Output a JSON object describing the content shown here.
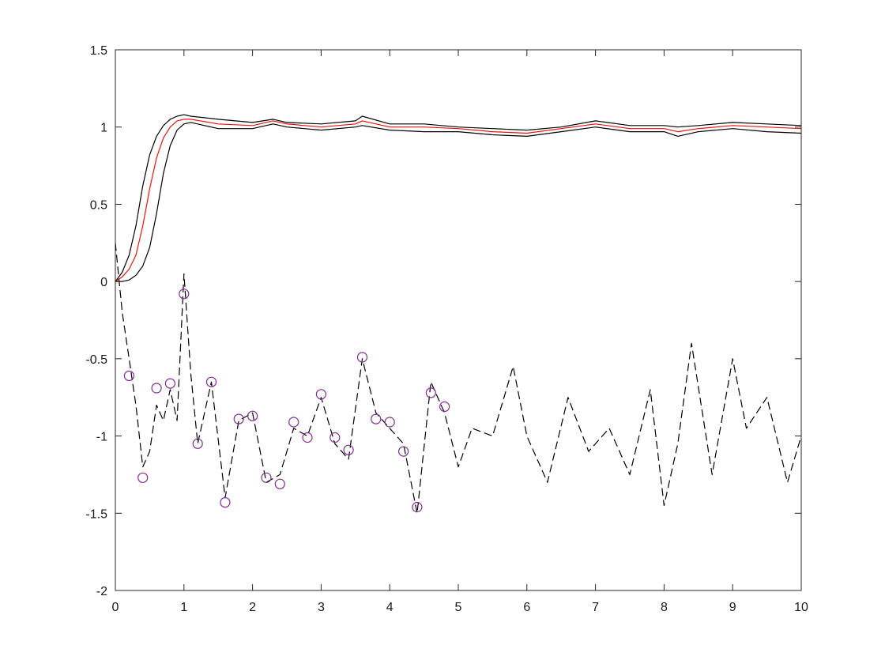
{
  "chart_data": {
    "type": "line",
    "title": "",
    "xlabel": "",
    "ylabel": "",
    "xlim": [
      0,
      10
    ],
    "ylim": [
      -2,
      1.5
    ],
    "grid": false,
    "legend": "none",
    "x_ticks": [
      "0",
      "1",
      "2",
      "3",
      "4",
      "5",
      "6",
      "7",
      "8",
      "9",
      "10"
    ],
    "y_ticks": [
      "-2",
      "-1.5",
      "-1",
      "-0.5",
      "0",
      "0.5",
      "1",
      "1.5"
    ],
    "colors": {
      "upper_band": "#000000",
      "mean": "#e8130f",
      "lower_band": "#000000",
      "noisy_signal": "#000000",
      "markers": "#7e2f8e"
    },
    "series": [
      {
        "style": "solid-black",
        "x": [
          0,
          0.1,
          0.2,
          0.3,
          0.4,
          0.5,
          0.6,
          0.7,
          0.8,
          0.9,
          1.0,
          1.1,
          1.5,
          2.0,
          2.3,
          2.5,
          3.0,
          3.5,
          3.6,
          4.0,
          4.5,
          5.0,
          5.5,
          6.0,
          6.5,
          7.0,
          7.5,
          8.0,
          8.2,
          8.5,
          9.0,
          9.5,
          10.0
        ],
        "y": [
          0.0,
          0.06,
          0.17,
          0.36,
          0.62,
          0.82,
          0.94,
          1.01,
          1.05,
          1.07,
          1.08,
          1.07,
          1.05,
          1.03,
          1.05,
          1.03,
          1.02,
          1.04,
          1.07,
          1.02,
          1.02,
          1.0,
          0.99,
          0.98,
          1.0,
          1.04,
          1.01,
          1.01,
          1.0,
          1.01,
          1.03,
          1.02,
          1.01
        ]
      },
      {
        "style": "solid-red",
        "x": [
          0,
          0.1,
          0.2,
          0.3,
          0.4,
          0.5,
          0.6,
          0.7,
          0.8,
          0.9,
          1.0,
          1.1,
          1.5,
          2.0,
          2.3,
          2.5,
          3.0,
          3.5,
          3.6,
          4.0,
          4.5,
          5.0,
          5.5,
          6.0,
          6.5,
          7.0,
          7.5,
          8.0,
          8.2,
          8.5,
          9.0,
          9.5,
          10.0
        ],
        "y": [
          0.0,
          0.03,
          0.08,
          0.17,
          0.36,
          0.6,
          0.8,
          0.93,
          1.0,
          1.04,
          1.05,
          1.05,
          1.02,
          1.01,
          1.04,
          1.02,
          1.0,
          1.02,
          1.04,
          1.0,
          1.0,
          0.99,
          0.97,
          0.96,
          0.99,
          1.02,
          0.99,
          0.99,
          0.97,
          0.99,
          1.01,
          1.0,
          0.99
        ]
      },
      {
        "style": "solid-black",
        "x": [
          0,
          0.1,
          0.2,
          0.3,
          0.4,
          0.5,
          0.6,
          0.7,
          0.8,
          0.9,
          1.0,
          1.1,
          1.5,
          2.0,
          2.3,
          2.5,
          3.0,
          3.5,
          3.6,
          4.0,
          4.5,
          5.0,
          5.5,
          6.0,
          6.5,
          7.0,
          7.5,
          8.0,
          8.2,
          8.5,
          9.0,
          9.5,
          10.0
        ],
        "y": [
          0.0,
          0.0,
          0.01,
          0.04,
          0.1,
          0.22,
          0.44,
          0.7,
          0.88,
          0.98,
          1.02,
          1.03,
          0.99,
          0.99,
          1.02,
          1.0,
          0.98,
          1.0,
          1.01,
          0.98,
          0.97,
          0.97,
          0.95,
          0.94,
          0.97,
          1.0,
          0.97,
          0.97,
          0.94,
          0.97,
          0.99,
          0.97,
          0.96
        ]
      },
      {
        "style": "dashed-black",
        "x": [
          0,
          0.1,
          0.2,
          0.3,
          0.4,
          0.5,
          0.6,
          0.7,
          0.8,
          0.9,
          1.0,
          1.1,
          1.2,
          1.4,
          1.6,
          1.8,
          2.0,
          2.2,
          2.4,
          2.6,
          2.8,
          3.0,
          3.2,
          3.4,
          3.6,
          3.8,
          4.0,
          4.2,
          4.4,
          4.6,
          4.8,
          5.0,
          5.2,
          5.5,
          5.8,
          6.0,
          6.3,
          6.6,
          6.9,
          7.2,
          7.5,
          7.8,
          8.0,
          8.2,
          8.4,
          8.7,
          9.0,
          9.2,
          9.5,
          9.8,
          10.0
        ],
        "y": [
          0.25,
          -0.2,
          -0.5,
          -0.8,
          -1.2,
          -1.1,
          -0.8,
          -0.9,
          -0.7,
          -0.9,
          0.05,
          -0.6,
          -1.05,
          -0.65,
          -1.4,
          -0.9,
          -0.85,
          -1.3,
          -1.25,
          -0.95,
          -1.0,
          -0.75,
          -1.05,
          -1.15,
          -0.5,
          -0.85,
          -0.95,
          -1.05,
          -1.5,
          -0.65,
          -0.85,
          -1.2,
          -0.95,
          -1.0,
          -0.55,
          -1.0,
          -1.3,
          -0.75,
          -1.1,
          -0.95,
          -1.25,
          -0.7,
          -1.45,
          -1.05,
          -0.4,
          -1.25,
          -0.5,
          -0.95,
          -0.75,
          -1.3,
          -1.0
        ]
      }
    ],
    "markers": {
      "style": "circle-purple",
      "x": [
        0.2,
        0.4,
        0.6,
        0.8,
        1.0,
        1.2,
        1.4,
        1.6,
        1.8,
        2.0,
        2.2,
        2.4,
        2.6,
        2.8,
        3.0,
        3.2,
        3.4,
        3.6,
        3.8,
        4.0,
        4.2,
        4.4,
        4.6,
        4.8
      ],
      "y": [
        -0.61,
        -1.27,
        -0.69,
        -0.66,
        -0.08,
        -1.05,
        -0.65,
        -1.43,
        -0.89,
        -0.87,
        -1.27,
        -1.31,
        -0.91,
        -1.01,
        -0.73,
        -1.01,
        -1.09,
        -0.49,
        -0.89,
        -0.91,
        -1.1,
        -1.46,
        -0.72,
        -0.81
      ]
    }
  }
}
